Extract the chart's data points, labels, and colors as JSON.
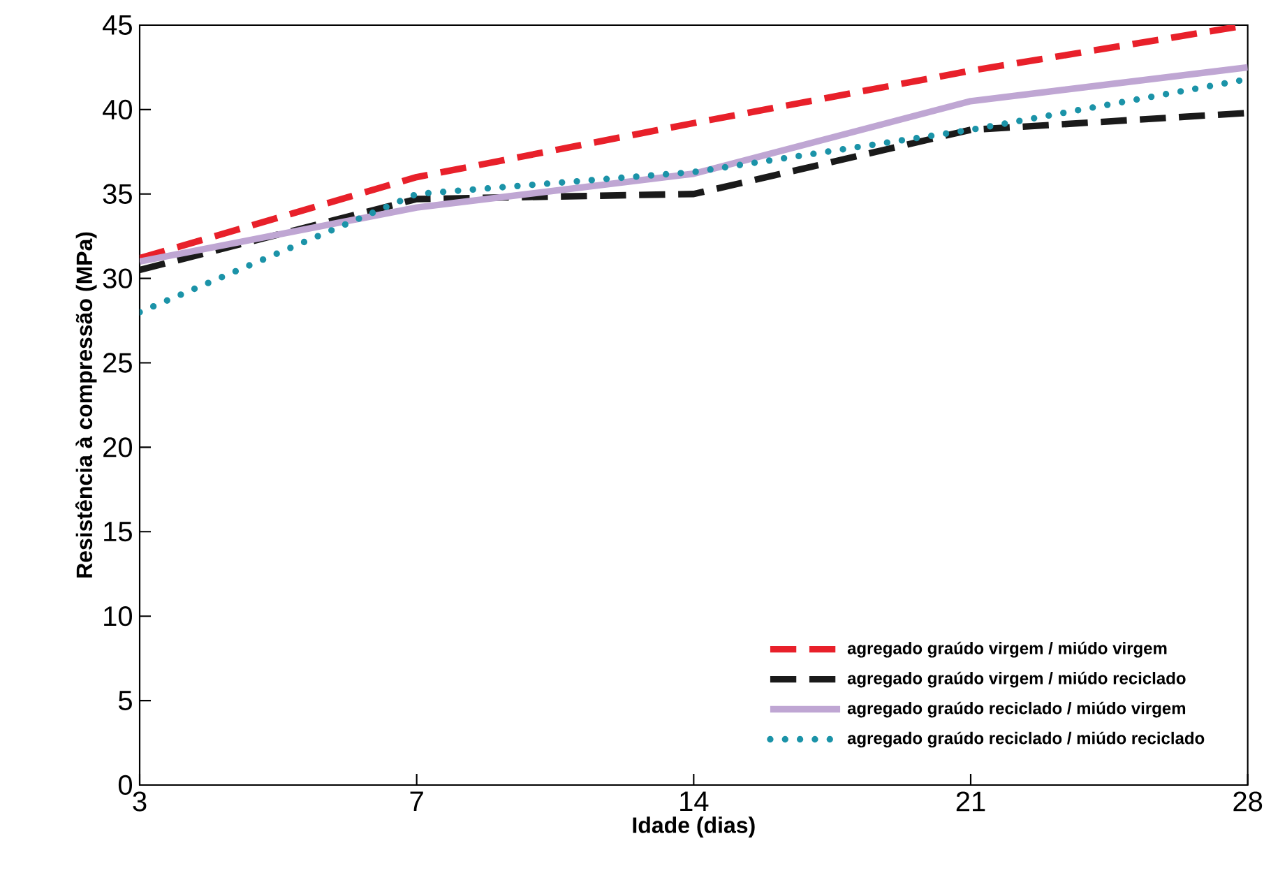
{
  "chart_data": {
    "type": "line",
    "xlabel": "Idade (dias)",
    "ylabel": "Resistência à compressão (MPa)",
    "categories": [
      "3",
      "7",
      "14",
      "21",
      "28"
    ],
    "ylim": [
      0,
      45
    ],
    "yticks": [
      0,
      5,
      10,
      15,
      20,
      25,
      30,
      35,
      40,
      45
    ],
    "grid": false,
    "legend": "bottom right",
    "marker": "none",
    "series": [
      {
        "name": "agregado graúdo virgem / miúdo virgem",
        "color": "#e8202a",
        "line_style": "dashed",
        "values": [
          31.2,
          36,
          39.2,
          42.3,
          45
        ]
      },
      {
        "name": "agregado graúdo virgem / miúdo reciclado",
        "color": "#1a1a1a",
        "line_style": "dashed",
        "values": [
          30.5,
          34.7,
          35,
          38.8,
          39.8
        ]
      },
      {
        "name": "agregado graúdo reciclado / miúdo virgem",
        "color": "#bfa6d3",
        "line_style": "solid",
        "values": [
          31,
          34.2,
          36.2,
          40.5,
          42.5
        ]
      },
      {
        "name": "agregado graúdo reciclado / miúdo reciclado",
        "color": "#1b93a8",
        "line_style": "dotted",
        "values": [
          28,
          35,
          36.3,
          38.8,
          41.8
        ]
      }
    ]
  }
}
